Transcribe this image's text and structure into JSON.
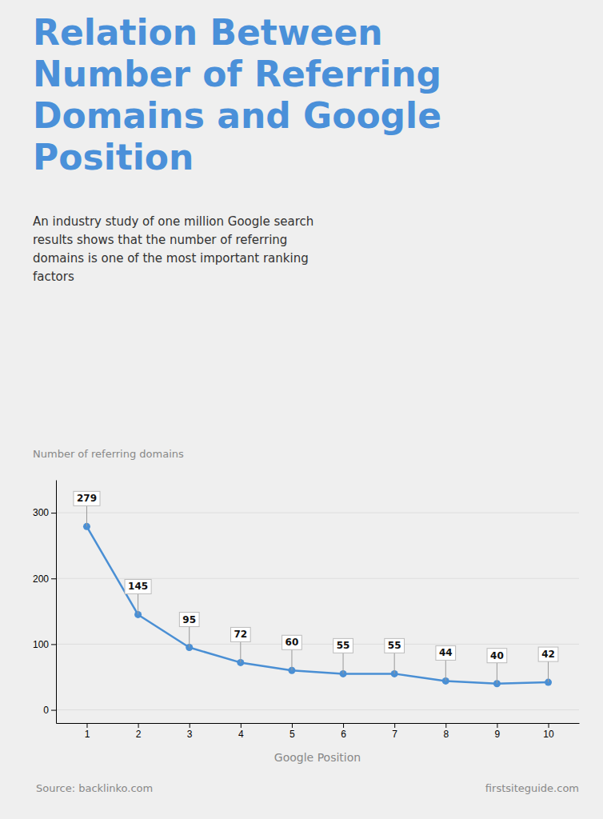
{
  "chart_data": {
    "type": "line",
    "title": "Relation Between\nNumber of Referring\nDomains and Google\nPosition",
    "subtitle": "An industry study of one million Google search\nresults shows that the number of referring\ndomains is one of the most important ranking\nfactors",
    "x_label": "Google Position",
    "y_label": "Number of referring domains",
    "x": [
      1,
      2,
      3,
      4,
      5,
      6,
      7,
      8,
      9,
      10
    ],
    "values": [
      279,
      145,
      95,
      72,
      60,
      55,
      55,
      44,
      40,
      42
    ],
    "color": "#4a8fd4",
    "xlim": [
      0.4,
      10.6
    ],
    "xticks": [
      1,
      2,
      3,
      4,
      5,
      6,
      7,
      8,
      9,
      10
    ],
    "ylim": [
      -20,
      350
    ],
    "yticks": [
      0,
      100,
      200,
      300
    ],
    "grid": true,
    "data_labels": true,
    "annotations": [
      "Source: backlinko.com",
      "firstsiteguide.com"
    ]
  }
}
